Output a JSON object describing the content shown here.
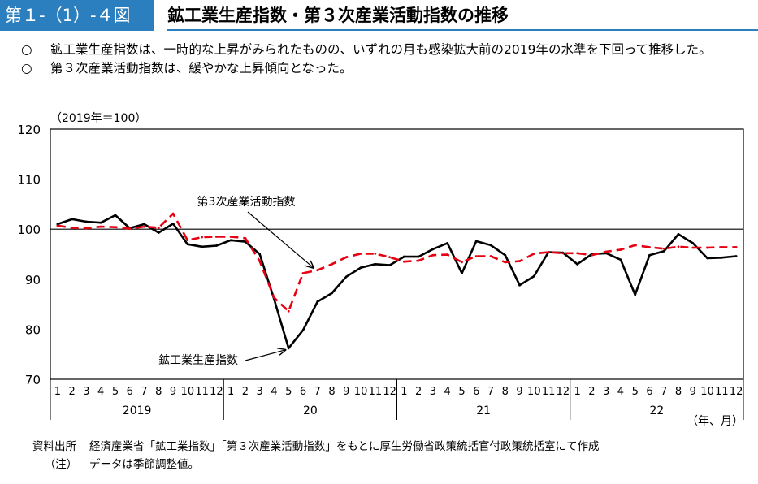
{
  "header": {
    "figure_label": "第１-（1）-４図",
    "title": "鉱工業生産指数・第３次産業活動指数の推移"
  },
  "bullets": [
    {
      "mark": "○",
      "text": "鉱工業生産指数は、一時的な上昇がみられたものの、いずれの月も感染拡大前の2019年の水準を下回って推移した。"
    },
    {
      "mark": "○",
      "text": "第３次産業活動指数は、緩やかな上昇傾向となった。"
    }
  ],
  "notes": {
    "source_label": "資料出所",
    "source_text": "経済産業省「鉱工業指数」「第３次産業活動指数」をもとに厚生労働省政策統括官付政策統括室にて作成",
    "note_label": "（注）",
    "note_text": "データは季節調整値。"
  },
  "chart_data": {
    "type": "line",
    "base_label": "（2019年＝100）",
    "xlabel": "（年、月）",
    "ylim": [
      70,
      120
    ],
    "yticks": [
      70,
      80,
      90,
      100,
      110,
      120
    ],
    "reference_line": 100,
    "months": [
      "1",
      "2",
      "3",
      "4",
      "5",
      "6",
      "7",
      "8",
      "9",
      "10",
      "11",
      "12",
      "1",
      "2",
      "3",
      "4",
      "5",
      "6",
      "7",
      "8",
      "9",
      "10",
      "11",
      "12",
      "1",
      "2",
      "3",
      "4",
      "5",
      "6",
      "7",
      "8",
      "9",
      "10",
      "11",
      "12",
      "1",
      "2",
      "3",
      "4",
      "5",
      "6",
      "7",
      "8",
      "9",
      "10",
      "11",
      "12"
    ],
    "years": [
      "2019",
      "20",
      "21",
      "22"
    ],
    "series": [
      {
        "name": "鉱工業生産指数",
        "color": "#000000",
        "style": "solid",
        "values": [
          101.0,
          102.0,
          101.5,
          101.3,
          102.8,
          100.2,
          101.0,
          99.3,
          101.1,
          97.0,
          96.5,
          96.7,
          97.8,
          97.5,
          95.0,
          86.0,
          76.2,
          79.8,
          85.5,
          87.2,
          90.5,
          92.3,
          93.0,
          92.8,
          94.5,
          94.5,
          96.0,
          97.2,
          91.2,
          97.6,
          96.8,
          94.8,
          88.8,
          90.6,
          95.4,
          95.3,
          93.0,
          95.0,
          95.2,
          93.9,
          86.9,
          94.8,
          95.6,
          99.0,
          97.2,
          94.2,
          94.3,
          94.6
        ]
      },
      {
        "name": "第3次産業活動指数",
        "color": "#e60012",
        "style": "dashed",
        "values": [
          100.7,
          100.3,
          100.2,
          100.5,
          100.4,
          100.1,
          100.5,
          100.3,
          103.1,
          97.8,
          98.4,
          98.5,
          98.5,
          98.2,
          93.6,
          86.3,
          83.6,
          91.2,
          91.8,
          93.0,
          94.4,
          95.1,
          95.1,
          94.4,
          93.5,
          93.7,
          94.8,
          94.9,
          93.4,
          94.6,
          94.6,
          93.4,
          93.6,
          95.1,
          95.4,
          95.2,
          95.2,
          94.8,
          95.5,
          95.9,
          96.8,
          96.4,
          96.1,
          96.5,
          96.3,
          96.3,
          96.4,
          96.4
        ]
      }
    ],
    "annotations": [
      {
        "text": "第3次産業活動指数",
        "series": 1,
        "point_index": 18
      },
      {
        "text": "鉱工業生産指数",
        "series": 0,
        "point_index": 16
      }
    ]
  }
}
